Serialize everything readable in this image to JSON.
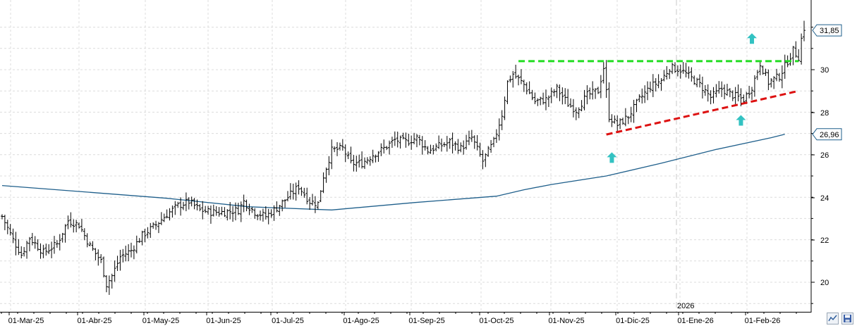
{
  "chart_data": {
    "type": "bar",
    "style": "ohlc",
    "ylim": [
      19,
      32.5
    ],
    "y_ticks": [
      "20",
      "22",
      "24",
      "26",
      "28",
      "30"
    ],
    "x_ticks": [
      "01-Mar-25",
      "01-Abr-25",
      "01-May-25",
      "01-Jun-25",
      "01-Jul-25",
      "01-Ago-25",
      "01-Sep-25",
      "01-Oct-25",
      "01-Nov-25",
      "01-Dic-25",
      "01-Ene-26",
      "01-Feb-26"
    ],
    "year_marker": {
      "label": "2026",
      "at": "01-Ene-26"
    },
    "price_tags": [
      {
        "label": "31,85",
        "value": 31.85,
        "color": "#ffffff",
        "border": "#1f5f8b"
      },
      {
        "label": "26,96",
        "value": 26.96,
        "color": "#ffffff",
        "border": "#1f5f8b"
      }
    ],
    "series": [
      {
        "kind": "ohlc",
        "color": "#000000",
        "waypoints": [
          [
            0,
            23.1
          ],
          [
            4,
            22.0
          ],
          [
            7,
            21.3
          ],
          [
            10,
            22.1
          ],
          [
            15,
            21.4
          ],
          [
            20,
            21.8
          ],
          [
            24,
            22.9
          ],
          [
            28,
            22.7
          ],
          [
            32,
            21.7
          ],
          [
            36,
            21.0
          ],
          [
            38,
            19.9
          ],
          [
            40,
            20.3
          ],
          [
            43,
            21.2
          ],
          [
            47,
            21.5
          ],
          [
            51,
            22.2
          ],
          [
            56,
            22.7
          ],
          [
            60,
            23.2
          ],
          [
            64,
            23.6
          ],
          [
            68,
            23.8
          ],
          [
            72,
            23.4
          ],
          [
            76,
            23.3
          ],
          [
            81,
            23.3
          ],
          [
            86,
            23.4
          ],
          [
            88,
            23.8
          ],
          [
            92,
            23.3
          ],
          [
            96,
            23.1
          ],
          [
            100,
            23.5
          ],
          [
            104,
            24.0
          ],
          [
            108,
            24.5
          ],
          [
            112,
            23.8
          ],
          [
            115,
            23.7
          ],
          [
            117,
            25.0
          ],
          [
            120,
            26.2
          ],
          [
            124,
            26.3
          ],
          [
            127,
            25.6
          ],
          [
            131,
            25.6
          ],
          [
            135,
            26.0
          ],
          [
            139,
            26.3
          ],
          [
            143,
            26.7
          ],
          [
            147,
            26.6
          ],
          [
            151,
            26.8
          ],
          [
            155,
            26.2
          ],
          [
            159,
            26.4
          ],
          [
            163,
            26.6
          ],
          [
            167,
            26.3
          ],
          [
            171,
            26.8
          ],
          [
            175,
            25.7
          ],
          [
            179,
            26.6
          ],
          [
            182,
            27.9
          ],
          [
            184,
            29.4
          ],
          [
            186,
            29.8
          ],
          [
            190,
            29.3
          ],
          [
            194,
            28.5
          ],
          [
            198,
            28.6
          ],
          [
            202,
            29.1
          ],
          [
            206,
            28.4
          ],
          [
            209,
            28.1
          ],
          [
            213,
            28.8
          ],
          [
            217,
            29.0
          ],
          [
            219,
            30.1
          ],
          [
            221,
            27.8
          ],
          [
            224,
            27.4
          ],
          [
            228,
            27.8
          ],
          [
            232,
            28.6
          ],
          [
            236,
            29.2
          ],
          [
            240,
            29.5
          ],
          [
            243,
            30.1
          ],
          [
            247,
            30.0
          ],
          [
            251,
            29.6
          ],
          [
            254,
            29.3
          ],
          [
            258,
            28.7
          ],
          [
            262,
            29.1
          ],
          [
            266,
            28.8
          ],
          [
            270,
            28.6
          ],
          [
            273,
            29.2
          ],
          [
            276,
            30.3
          ],
          [
            279,
            29.4
          ],
          [
            283,
            29.7
          ],
          [
            286,
            30.4
          ],
          [
            288,
            30.9
          ],
          [
            290,
            30.6
          ],
          [
            292,
            32.3
          ]
        ],
        "seed": 7
      },
      {
        "name": "",
        "kind": "line",
        "color": "#1f5f8b",
        "points": [
          [
            0,
            24.55
          ],
          [
            30,
            24.25
          ],
          [
            60,
            23.95
          ],
          [
            90,
            23.55
          ],
          [
            120,
            23.4
          ],
          [
            150,
            23.75
          ],
          [
            180,
            24.05
          ],
          [
            190,
            24.35
          ],
          [
            200,
            24.6
          ],
          [
            220,
            25.0
          ],
          [
            240,
            25.6
          ],
          [
            260,
            26.25
          ],
          [
            280,
            26.8
          ],
          [
            285,
            26.96
          ]
        ]
      }
    ],
    "annotations": [
      {
        "type": "resistance",
        "style": "dashed",
        "color": "#22dd22",
        "from": [
          188,
          30.4
        ],
        "to": [
          290,
          30.4
        ]
      },
      {
        "type": "trendline",
        "style": "dashed",
        "color": "#dd1111",
        "from": [
          220,
          26.95
        ],
        "to": [
          290,
          29.0
        ]
      },
      {
        "type": "arrow-up",
        "color": "#33c2c2",
        "at": [
          222,
          25.85
        ]
      },
      {
        "type": "arrow-up",
        "color": "#33c2c2",
        "at": [
          269,
          27.6
        ]
      },
      {
        "type": "arrow-up",
        "color": "#33c2c2",
        "at": [
          273,
          31.45
        ]
      }
    ],
    "grid": true,
    "x_domain": [
      0,
      292
    ]
  },
  "toolbar": {
    "chart_type_icon": "line-chart-icon",
    "save_icon": "save-icon"
  }
}
